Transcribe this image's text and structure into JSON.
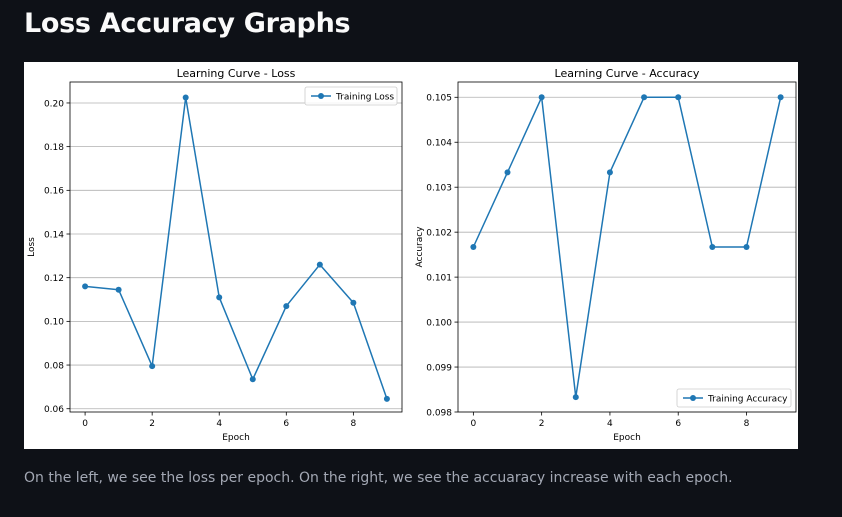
{
  "page": {
    "title": "Loss Accuracy Graphs",
    "caption": "On the left, we see the loss per epoch. On the right, we see the accuaracy increase with each epoch."
  },
  "colors": {
    "background": "#0e1117",
    "series": "#1f77b4",
    "grid": "#b0b0b0"
  },
  "chart_data": [
    {
      "type": "line",
      "title": "Learning Curve - Loss",
      "xlabel": "Epoch",
      "ylabel": "Loss",
      "x": [
        0,
        1,
        2,
        3,
        4,
        5,
        6,
        7,
        8,
        9
      ],
      "xlim": [
        -0.45,
        9.45
      ],
      "xticks": [
        0,
        2,
        4,
        6,
        8
      ],
      "ylim": [
        0.0585,
        0.2096
      ],
      "yticks": [
        0.06,
        0.08,
        0.1,
        0.12,
        0.14,
        0.16,
        0.18,
        0.2
      ],
      "ytick_labels": [
        "0.06",
        "0.08",
        "0.10",
        "0.12",
        "0.14",
        "0.16",
        "0.18",
        "0.20"
      ],
      "grid": "y",
      "legend": "upper-right",
      "series": [
        {
          "name": "Training Loss",
          "marker": "circle",
          "values": [
            0.116,
            0.1145,
            0.0795,
            0.2025,
            0.111,
            0.0735,
            0.107,
            0.126,
            0.1085,
            0.0645
          ]
        }
      ]
    },
    {
      "type": "line",
      "title": "Learning Curve - Accuracy",
      "xlabel": "Epoch",
      "ylabel": "Accuracy",
      "x": [
        0,
        1,
        2,
        3,
        4,
        5,
        6,
        7,
        8,
        9
      ],
      "xlim": [
        -0.45,
        9.45
      ],
      "xticks": [
        0,
        2,
        4,
        6,
        8
      ],
      "ylim": [
        0.098,
        0.10534
      ],
      "yticks": [
        0.098,
        0.099,
        0.1,
        0.101,
        0.102,
        0.103,
        0.104,
        0.105
      ],
      "ytick_labels": [
        "0.098",
        "0.099",
        "0.100",
        "0.101",
        "0.102",
        "0.103",
        "0.104",
        "0.105"
      ],
      "grid": "y",
      "legend": "lower-right",
      "series": [
        {
          "name": "Training Accuracy",
          "marker": "circle",
          "values": [
            0.10167,
            0.10333,
            0.105,
            0.09833,
            0.10333,
            0.105,
            0.105,
            0.10167,
            0.10167,
            0.105
          ]
        }
      ]
    }
  ]
}
